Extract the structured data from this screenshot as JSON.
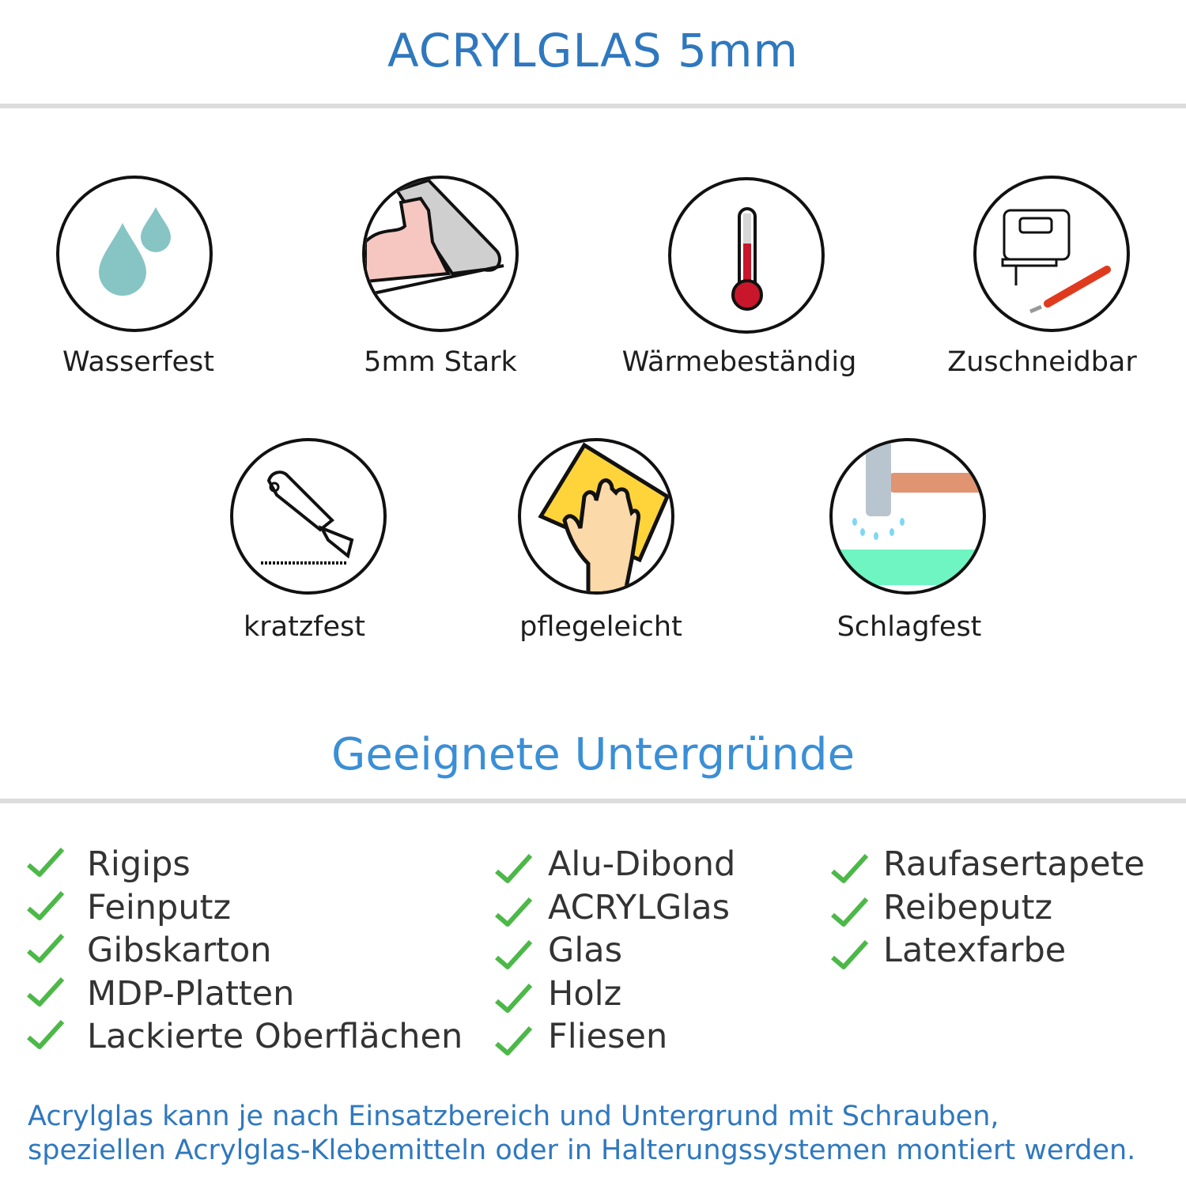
{
  "header": {
    "title": "ACRYLGLAS 5mm"
  },
  "features": [
    {
      "label": "Wasserfest",
      "icon": "water-drops-icon"
    },
    {
      "label": "5mm Stark",
      "icon": "strong-arm-icon"
    },
    {
      "label": "Wärmebeständig",
      "icon": "thermometer-icon"
    },
    {
      "label": "Zuschneidbar",
      "icon": "jigsaw-knife-icon"
    },
    {
      "label": "kratzfest",
      "icon": "cutter-knife-icon"
    },
    {
      "label": "pflegeleicht",
      "icon": "wiping-hand-icon"
    },
    {
      "label": "Schlagfest",
      "icon": "hammer-icon"
    }
  ],
  "surfaces": {
    "title": "Geeignete Untergründe",
    "columns": [
      [
        "Rigips",
        "Feinputz",
        "Gibskarton",
        "MDP-Platten",
        "Lackierte Oberflächen"
      ],
      [
        "Alu-Dibond",
        "ACRYLGlas",
        "Glas",
        "Holz",
        "Fliesen"
      ],
      [
        "Raufasertapete",
        "Reibeputz",
        "Latexfarbe"
      ]
    ],
    "check_color": "#4cb848"
  },
  "footer": {
    "line1": "Acrylglas kann je nach Einsatzbereich und Untergrund mit Schrauben,",
    "line2": "speziellen Acrylglas-Klebemitteln oder in Halterungssystemen montiert werden."
  },
  "colors": {
    "title": "#2f78be",
    "heading": "#3a8fd6",
    "rule": "#dcdcdc"
  }
}
